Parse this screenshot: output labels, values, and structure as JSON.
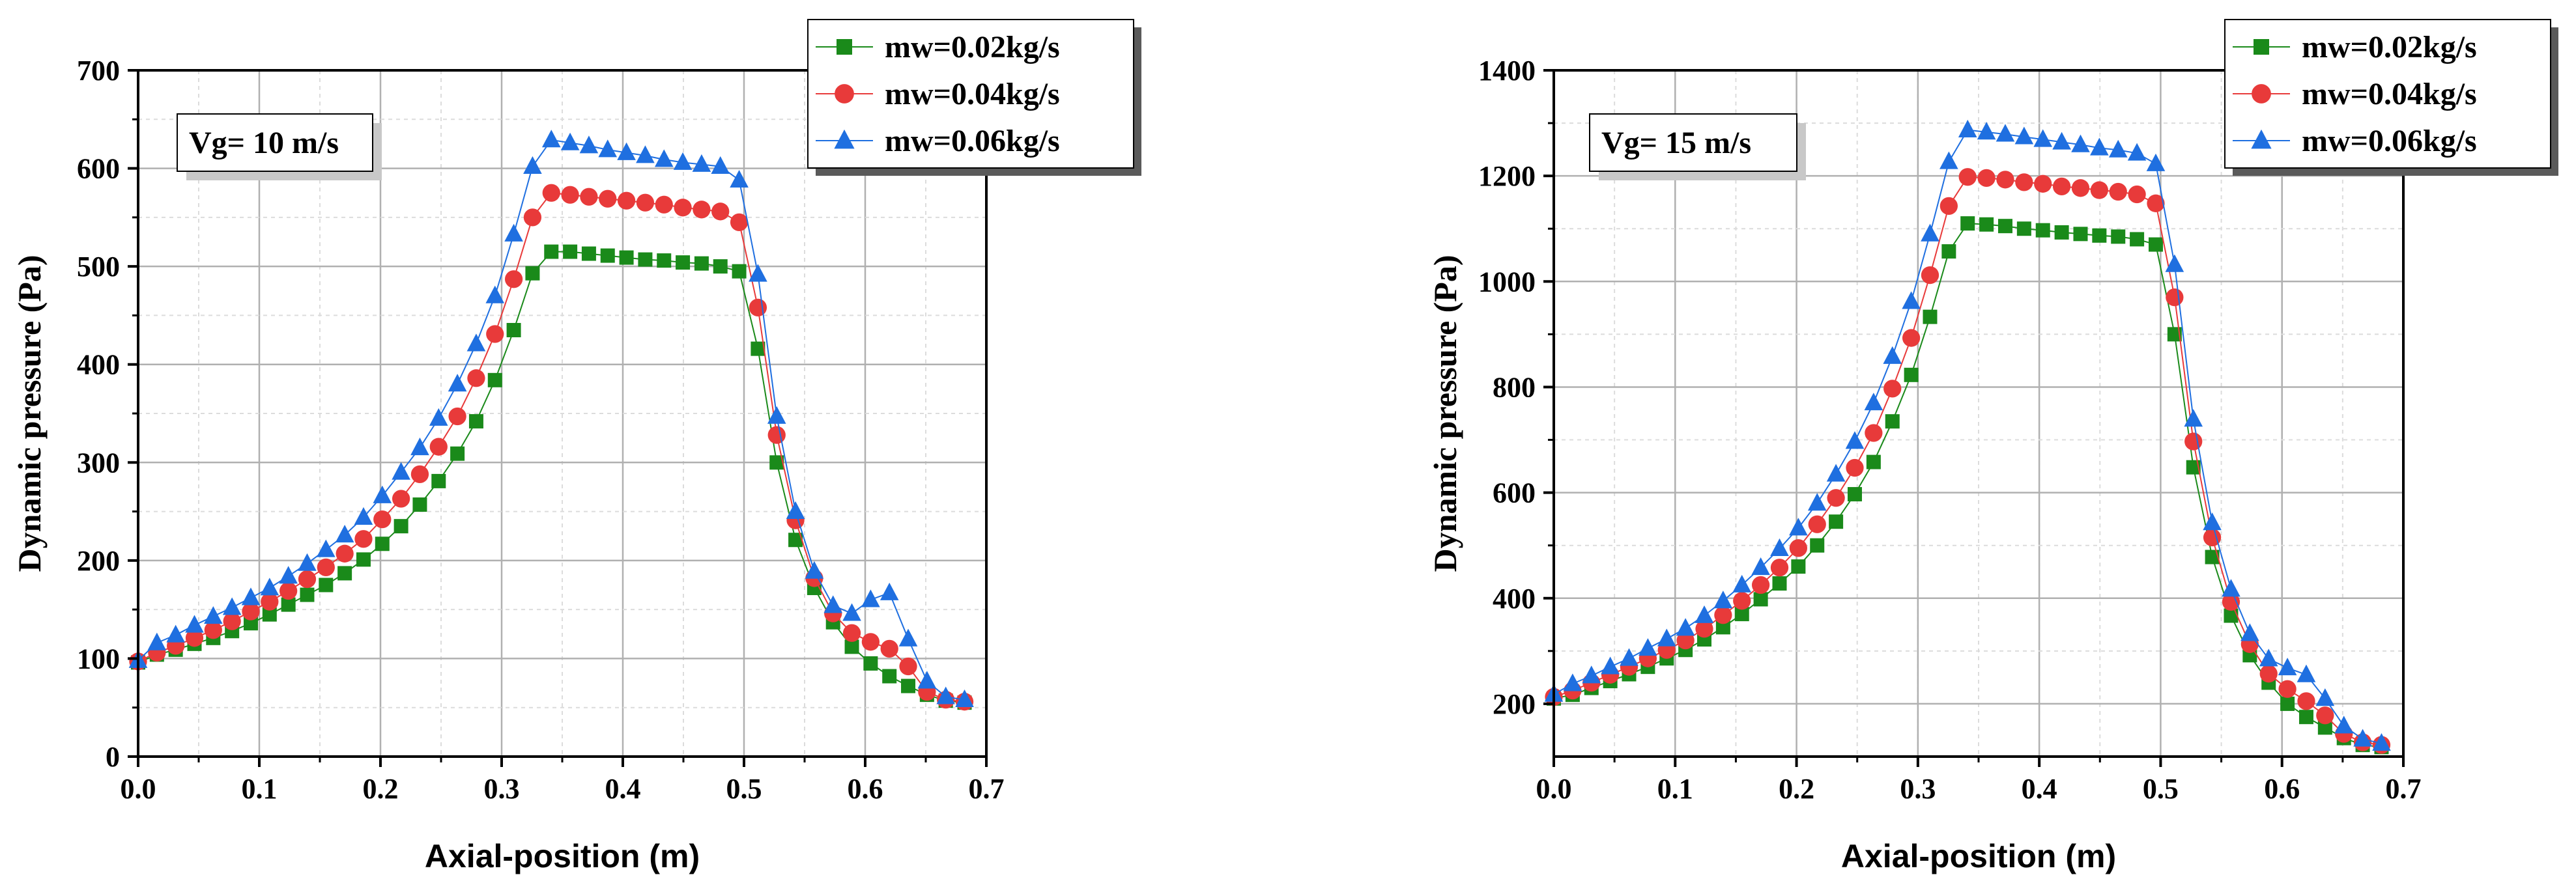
{
  "chart_data": [
    {
      "type": "line",
      "title": "",
      "xlabel": "Axial-position (m)",
      "ylabel": "Dynamic pressure (Pa)",
      "xlim": [
        0.0,
        0.7
      ],
      "ylim": [
        0,
        700
      ],
      "xticks": [
        "0.0",
        "0.1",
        "0.2",
        "0.3",
        "0.4",
        "0.5",
        "0.6",
        "0.7"
      ],
      "yticks": [
        "0",
        "100",
        "200",
        "300",
        "400",
        "500",
        "600",
        "700"
      ],
      "grid": true,
      "legend_position": "top-right",
      "annotation": "Vg= 10 m/s",
      "x": [
        0.0,
        0.0155,
        0.031,
        0.0465,
        0.062,
        0.0775,
        0.093,
        0.1085,
        0.124,
        0.1395,
        0.155,
        0.1705,
        0.186,
        0.2015,
        0.217,
        0.2325,
        0.248,
        0.2635,
        0.279,
        0.2945,
        0.31,
        0.3255,
        0.341,
        0.3565,
        0.372,
        0.3875,
        0.403,
        0.4185,
        0.434,
        0.4495,
        0.465,
        0.4805,
        0.496,
        0.5115,
        0.527,
        0.5425,
        0.558,
        0.5735,
        0.589,
        0.6045,
        0.62,
        0.6355,
        0.651,
        0.6665,
        0.682
      ],
      "series": [
        {
          "name": "mw=0.02kg/s",
          "color": "#1a8a1a",
          "marker": "square",
          "values": [
            96,
            104,
            109,
            115,
            121,
            128,
            136,
            145,
            155,
            165,
            175,
            187,
            201,
            217,
            235,
            257,
            281,
            309,
            342,
            384,
            435,
            493,
            515,
            515,
            513,
            511,
            509,
            507,
            506,
            504,
            503,
            500,
            495,
            416,
            300,
            221,
            172,
            137,
            112,
            95,
            82,
            72,
            63,
            57,
            55
          ]
        },
        {
          "name": "mw=0.04kg/s",
          "color": "#e83a3a",
          "marker": "circle",
          "values": [
            97,
            106,
            113,
            121,
            129,
            138,
            148,
            158,
            169,
            181,
            193,
            207,
            222,
            242,
            263,
            288,
            316,
            347,
            386,
            431,
            487,
            550,
            575,
            573,
            571,
            569,
            567,
            565,
            563,
            560,
            558,
            556,
            545,
            458,
            328,
            241,
            182,
            146,
            126,
            117,
            110,
            92,
            66,
            58,
            56
          ]
        },
        {
          "name": "mw=0.06kg/s",
          "color": "#1f6fe0",
          "marker": "triangle",
          "values": [
            98,
            116,
            124,
            134,
            143,
            152,
            162,
            172,
            184,
            197,
            211,
            226,
            244,
            266,
            290,
            315,
            345,
            380,
            421,
            470,
            533,
            602,
            629,
            626,
            623,
            619,
            616,
            613,
            609,
            606,
            604,
            602,
            588,
            492,
            347,
            250,
            189,
            154,
            146,
            160,
            167,
            120,
            77,
            61,
            58
          ]
        }
      ]
    },
    {
      "type": "line",
      "title": "",
      "xlabel": "Axial-position (m)",
      "ylabel": "Dynamic pressure (Pa)",
      "xlim": [
        0.0,
        0.7
      ],
      "ylim": [
        100,
        1400
      ],
      "xticks": [
        "0.0",
        "0.1",
        "0.2",
        "0.3",
        "0.4",
        "0.5",
        "0.6",
        "0.7"
      ],
      "yticks": [
        "200",
        "400",
        "600",
        "800",
        "1000",
        "1200",
        "1400"
      ],
      "grid": true,
      "legend_position": "top-right",
      "annotation": "Vg= 15 m/s",
      "x": [
        0.0,
        0.0155,
        0.031,
        0.0465,
        0.062,
        0.0775,
        0.093,
        0.1085,
        0.124,
        0.1395,
        0.155,
        0.1705,
        0.186,
        0.2015,
        0.217,
        0.2325,
        0.248,
        0.2635,
        0.279,
        0.2945,
        0.31,
        0.3255,
        0.341,
        0.3565,
        0.372,
        0.3875,
        0.403,
        0.4185,
        0.434,
        0.4495,
        0.465,
        0.4805,
        0.496,
        0.5115,
        0.527,
        0.5425,
        0.558,
        0.5735,
        0.589,
        0.6045,
        0.62,
        0.6355,
        0.651,
        0.6665,
        0.682
      ],
      "series": [
        {
          "name": "mw=0.02kg/s",
          "color": "#1a8a1a",
          "marker": "square",
          "values": [
            210,
            217,
            230,
            243,
            256,
            270,
            286,
            302,
            322,
            345,
            370,
            398,
            428,
            460,
            500,
            545,
            597,
            658,
            735,
            823,
            933,
            1057,
            1110,
            1108,
            1105,
            1100,
            1097,
            1093,
            1090,
            1087,
            1085,
            1080,
            1070,
            900,
            648,
            478,
            367,
            292,
            240,
            200,
            175,
            155,
            135,
            122,
            118
          ]
        },
        {
          "name": "mw=0.04kg/s",
          "color": "#e83a3a",
          "marker": "circle",
          "values": [
            213,
            225,
            240,
            255,
            270,
            286,
            302,
            320,
            342,
            368,
            395,
            425,
            458,
            495,
            540,
            590,
            647,
            713,
            797,
            893,
            1012,
            1143,
            1198,
            1196,
            1193,
            1188,
            1185,
            1180,
            1177,
            1173,
            1170,
            1165,
            1148,
            970,
            697,
            515,
            393,
            313,
            257,
            228,
            205,
            178,
            143,
            127,
            122
          ]
        },
        {
          "name": "mw=0.06kg/s",
          "color": "#1f6fe0",
          "marker": "triangle",
          "values": [
            218,
            238,
            253,
            270,
            286,
            305,
            323,
            343,
            367,
            395,
            425,
            458,
            494,
            533,
            580,
            635,
            697,
            770,
            858,
            962,
            1090,
            1227,
            1287,
            1283,
            1279,
            1274,
            1269,
            1264,
            1259,
            1253,
            1249,
            1243,
            1223,
            1032,
            739,
            543,
            417,
            333,
            285,
            268,
            255,
            210,
            158,
            133,
            125
          ]
        }
      ]
    }
  ]
}
